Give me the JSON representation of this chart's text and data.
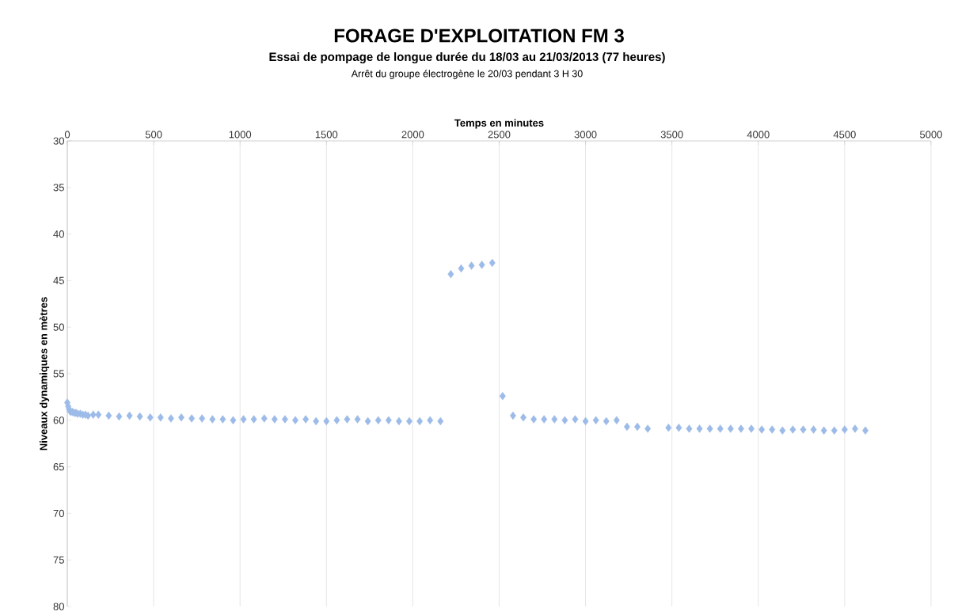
{
  "chart_data": {
    "type": "scatter",
    "title": "FORAGE D'EXPLOITATION FM 3",
    "subtitle": "Essai de pompage de longue durée du 18/03 au 21/03/2013 (77 heures)",
    "annotations": [
      "Arrêt du groupe électrogène le 20/03 pendant 3 H 30"
    ],
    "xlabel": "Temps en minutes",
    "ylabel": "Niveaux dynamiques en mètres",
    "x": [
      0,
      5,
      10,
      15,
      20,
      30,
      40,
      50,
      60,
      75,
      90,
      105,
      120,
      150,
      180,
      240,
      300,
      360,
      420,
      480,
      540,
      600,
      660,
      720,
      780,
      840,
      900,
      960,
      1020,
      1080,
      1140,
      1200,
      1260,
      1320,
      1380,
      1440,
      1500,
      1560,
      1620,
      1680,
      1740,
      1800,
      1860,
      1920,
      1980,
      2040,
      2100,
      2160,
      2220,
      2280,
      2340,
      2400,
      2460,
      2520,
      2580,
      2640,
      2700,
      2760,
      2820,
      2880,
      2940,
      3000,
      3060,
      3120,
      3180,
      3240,
      3300,
      3360,
      3480,
      3540,
      3600,
      3660,
      3720,
      3780,
      3840,
      3900,
      3960,
      4020,
      4080,
      4140,
      4200,
      4260,
      4320,
      4380,
      4440,
      4500,
      4560,
      4620
    ],
    "series": [
      {
        "color": "#9dbbe8",
        "values": [
          58.1,
          58.5,
          58.8,
          59.0,
          59.1,
          59.1,
          59.2,
          59.2,
          59.3,
          59.3,
          59.4,
          59.4,
          59.5,
          59.4,
          59.4,
          59.5,
          59.6,
          59.5,
          59.6,
          59.7,
          59.7,
          59.8,
          59.7,
          59.8,
          59.8,
          59.9,
          59.9,
          60.0,
          59.9,
          59.9,
          59.8,
          59.9,
          59.9,
          60.0,
          59.9,
          60.1,
          60.1,
          60.0,
          59.9,
          59.9,
          60.1,
          60.0,
          60.0,
          60.1,
          60.1,
          60.1,
          60.0,
          60.1,
          44.3,
          43.7,
          43.4,
          43.3,
          43.1,
          57.4,
          59.5,
          59.7,
          59.9,
          59.9,
          59.9,
          60.0,
          59.9,
          60.1,
          60.0,
          60.1,
          60.0,
          60.7,
          60.7,
          60.9,
          60.8,
          60.8,
          60.9,
          60.9,
          60.9,
          60.9,
          60.9,
          60.9,
          60.9,
          61.0,
          61.0,
          61.1,
          61.0,
          61.0,
          61.0,
          61.1,
          61.1,
          61.0,
          60.9,
          61.1
        ]
      }
    ],
    "xlim": [
      0,
      5000
    ],
    "xticks": [
      0,
      500,
      1000,
      1500,
      2000,
      2500,
      3000,
      3500,
      4000,
      4500,
      5000
    ],
    "ylim": [
      80,
      30
    ],
    "yticks": [
      30,
      35,
      40,
      45,
      50,
      55,
      60,
      65,
      70,
      75,
      80
    ],
    "grid": "x",
    "marker": "diamond"
  }
}
